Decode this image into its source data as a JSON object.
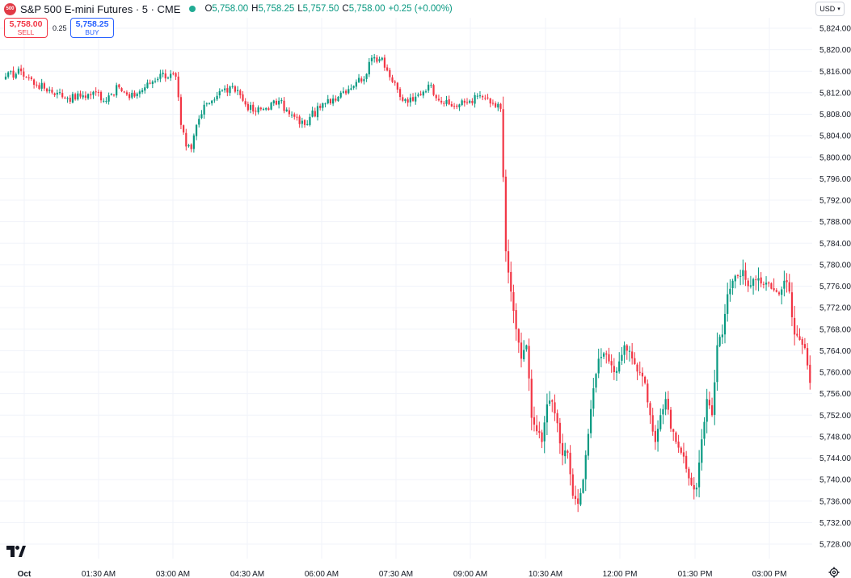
{
  "symbol": {
    "badge": "500",
    "title": "S&P 500 E-mini Futures · 5 · CME",
    "ohlc": {
      "o_label": "O",
      "o": "5,758.00",
      "h_label": "H",
      "h": "5,758.25",
      "l_label": "L",
      "l": "5,757.50",
      "c_label": "C",
      "c": "5,758.00",
      "change": "+0.25 (+0.00%)"
    }
  },
  "trade": {
    "sell_price": "5,758.00",
    "sell_label": "SELL",
    "spread": "0.25",
    "buy_price": "5,758.25",
    "buy_label": "BUY"
  },
  "currency": {
    "label": "USD"
  },
  "colors": {
    "up": "#089981",
    "down": "#f23645",
    "grid": "#f0f3fa"
  },
  "chart_data": {
    "type": "candlestick",
    "interval": "5 min",
    "y_range": [
      5726.5,
      5826
    ],
    "y_ticks": [
      "5,824.00",
      "5,820.00",
      "5,816.00",
      "5,812.00",
      "5,808.00",
      "5,804.00",
      "5,800.00",
      "5,796.00",
      "5,792.00",
      "5,788.00",
      "5,784.00",
      "5,780.00",
      "5,776.00",
      "5,772.00",
      "5,768.00",
      "5,764.00",
      "5,760.00",
      "5,756.00",
      "5,752.00",
      "5,748.00",
      "5,744.00",
      "5,740.00",
      "5,736.00",
      "5,732.00",
      "5,728.00"
    ],
    "x_ticks": [
      "Oct",
      "01:30 AM",
      "03:00 AM",
      "04:30 AM",
      "06:00 AM",
      "07:30 AM",
      "09:00 AM",
      "10:30 AM",
      "12:00 PM",
      "01:30 PM",
      "03:00 PM"
    ],
    "close_path": [
      [
        0,
        5815.0
      ],
      [
        6,
        5816.0
      ],
      [
        12,
        5813.5
      ],
      [
        20,
        5812.0
      ],
      [
        24,
        5811.0
      ],
      [
        30,
        5811.5
      ],
      [
        36,
        5812.0
      ],
      [
        38,
        5810.5
      ],
      [
        40,
        5811.5
      ],
      [
        44,
        5813.0
      ],
      [
        48,
        5811.0
      ],
      [
        54,
        5813.0
      ],
      [
        60,
        5815.5
      ],
      [
        66,
        5815.0
      ],
      [
        68,
        5806.0
      ],
      [
        70,
        5802.0
      ],
      [
        72,
        5801.5
      ],
      [
        74,
        5806.0
      ],
      [
        78,
        5810.0
      ],
      [
        84,
        5812.5
      ],
      [
        90,
        5812.5
      ],
      [
        92,
        5810.5
      ],
      [
        96,
        5808.5
      ],
      [
        100,
        5809.0
      ],
      [
        106,
        5810.5
      ],
      [
        110,
        5808.0
      ],
      [
        116,
        5806.0
      ],
      [
        118,
        5807.5
      ],
      [
        124,
        5810.0
      ],
      [
        130,
        5812.0
      ],
      [
        136,
        5814.0
      ],
      [
        140,
        5815.5
      ],
      [
        142,
        5818.5
      ],
      [
        146,
        5818.5
      ],
      [
        150,
        5814.0
      ],
      [
        154,
        5810.5
      ],
      [
        158,
        5810.5
      ],
      [
        164,
        5813.5
      ],
      [
        170,
        5810.0
      ],
      [
        174,
        5809.5
      ],
      [
        180,
        5810.5
      ],
      [
        184,
        5811.5
      ],
      [
        186,
        5811.0
      ],
      [
        188,
        5810.0
      ],
      [
        192,
        5809.0
      ],
      [
        194,
        5782.5
      ],
      [
        196,
        5775.0
      ],
      [
        198,
        5768.0
      ],
      [
        200,
        5762.5
      ],
      [
        202,
        5765.0
      ],
      [
        204,
        5751.5
      ],
      [
        206,
        5749.0
      ],
      [
        208,
        5747.0
      ],
      [
        210,
        5754.0
      ],
      [
        212,
        5754.5
      ],
      [
        214,
        5750.5
      ],
      [
        216,
        5744.5
      ],
      [
        218,
        5745.0
      ],
      [
        220,
        5737.0
      ],
      [
        222,
        5735.5
      ],
      [
        224,
        5740.0
      ],
      [
        226,
        5748.5
      ],
      [
        228,
        5757.0
      ],
      [
        230,
        5762.5
      ],
      [
        232,
        5763.5
      ],
      [
        234,
        5762.0
      ],
      [
        236,
        5760.0
      ],
      [
        238,
        5762.0
      ],
      [
        240,
        5765.0
      ],
      [
        244,
        5761.5
      ],
      [
        246,
        5760.0
      ],
      [
        248,
        5758.0
      ],
      [
        250,
        5752.0
      ],
      [
        252,
        5747.0
      ],
      [
        254,
        5752.0
      ],
      [
        256,
        5755.0
      ],
      [
        258,
        5749.5
      ],
      [
        260,
        5747.0
      ],
      [
        262,
        5745.0
      ],
      [
        264,
        5742.0
      ],
      [
        266,
        5739.0
      ],
      [
        268,
        5738.5
      ],
      [
        270,
        5747.5
      ],
      [
        272,
        5755.0
      ],
      [
        274,
        5752.0
      ],
      [
        276,
        5765.0
      ],
      [
        278,
        5767.0
      ],
      [
        280,
        5774.5
      ],
      [
        282,
        5777.0
      ],
      [
        284,
        5778.0
      ],
      [
        286,
        5779.0
      ],
      [
        288,
        5776.0
      ],
      [
        292,
        5777.5
      ],
      [
        296,
        5776.5
      ],
      [
        300,
        5774.5
      ],
      [
        302,
        5777.0
      ],
      [
        304,
        5775.0
      ],
      [
        306,
        5767.0
      ],
      [
        308,
        5766.0
      ],
      [
        310,
        5764.5
      ],
      [
        312,
        5758.0
      ]
    ]
  }
}
